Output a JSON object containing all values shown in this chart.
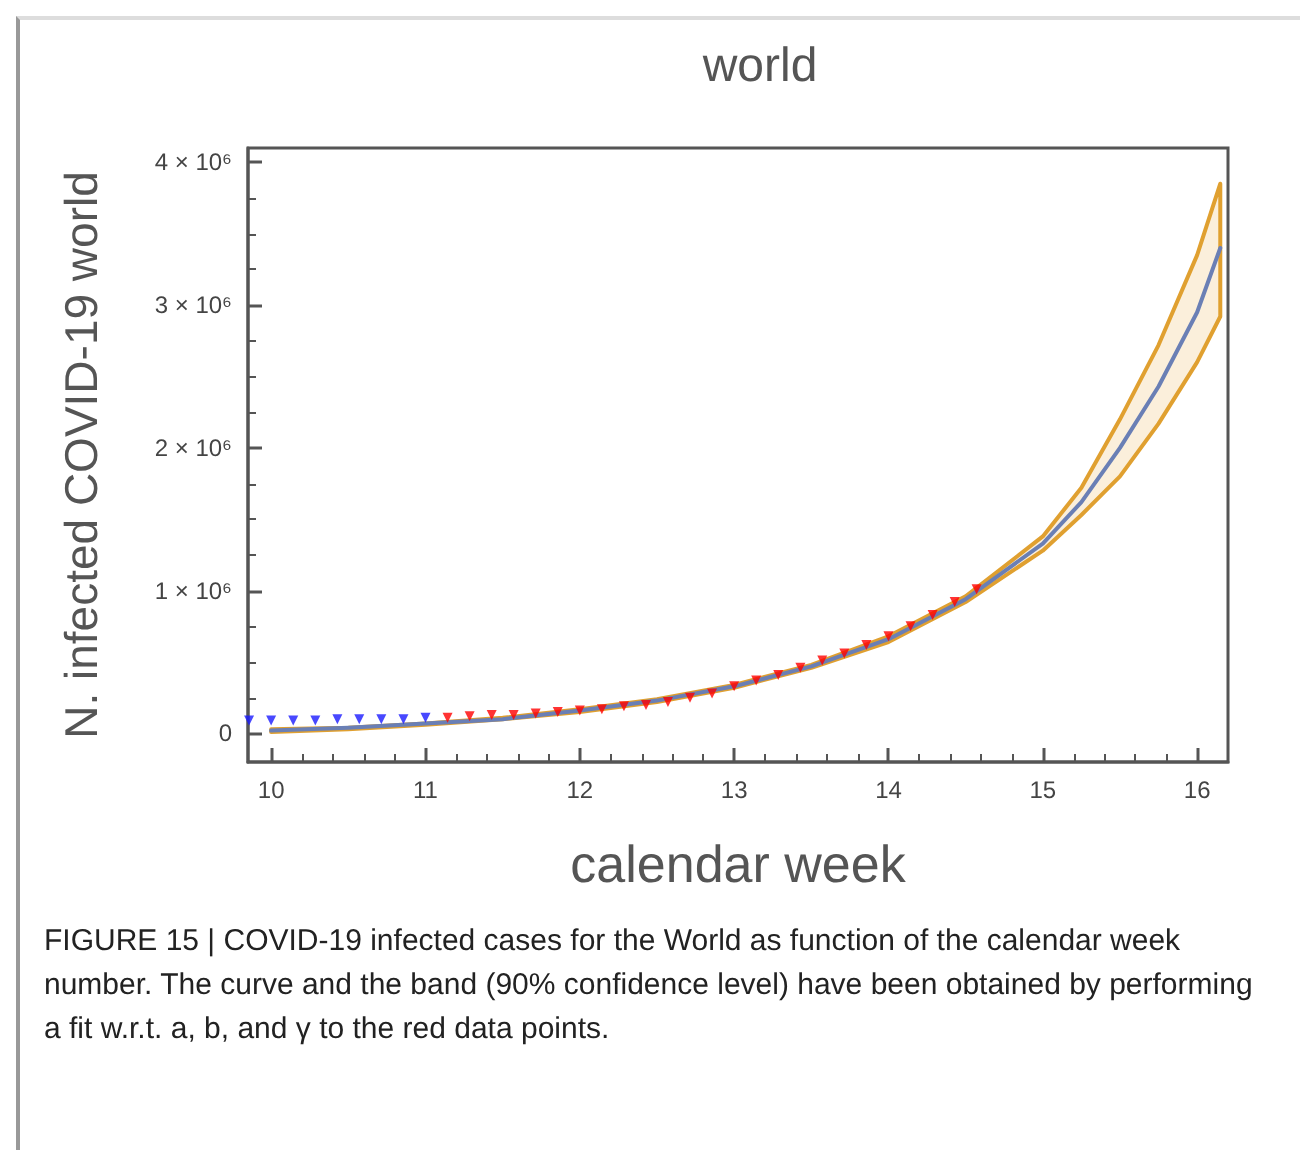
{
  "chart_data": {
    "type": "line",
    "title": "world",
    "xlabel": "calendar week",
    "ylabel": "N. infected COVID-19 world",
    "xlim": [
      9.85,
      16.2
    ],
    "xticks": [
      10,
      11,
      12,
      13,
      14,
      15,
      16
    ],
    "ylim": [
      -200000,
      4100000
    ],
    "yticks": [
      0,
      {
        "value": 1000000,
        "label": "1 × 10⁶"
      },
      {
        "value": 2000000,
        "label": "2 × 10⁶"
      },
      {
        "value": 3000000,
        "label": "3 × 10⁶"
      },
      {
        "value": 4000000,
        "label": "4 × 10⁶"
      }
    ],
    "grid": false,
    "series": [
      {
        "color": "#6a7fb5",
        "marker": "none",
        "line_style": "solid",
        "x": [
          10,
          10.5,
          11,
          11.5,
          12,
          12.5,
          13,
          13.5,
          14,
          14.5,
          15,
          15.25,
          15.5,
          15.75,
          16,
          16.15
        ],
        "values": [
          20000,
          40000,
          70000,
          100000,
          160000,
          230000,
          330000,
          470000,
          660000,
          940000,
          1330000,
          1620000,
          2000000,
          2430000,
          2950000,
          3400000
        ],
        "lower": [
          10000,
          30000,
          60000,
          100000,
          150000,
          220000,
          320000,
          460000,
          640000,
          920000,
          1280000,
          1530000,
          1800000,
          2170000,
          2600000,
          2920000
        ],
        "upper": [
          30000,
          40000,
          70000,
          110000,
          170000,
          240000,
          340000,
          480000,
          680000,
          960000,
          1380000,
          1720000,
          2200000,
          2720000,
          3350000,
          3850000
        ]
      },
      {
        "type": "scatter",
        "color": "#1a1aff",
        "marker": "triangle",
        "x": [
          9.857,
          10,
          10.143,
          10.286,
          10.429,
          10.571,
          10.714,
          10.857,
          11
        ],
        "values": [
          90000,
          90000,
          90000,
          90000,
          100000,
          100000,
          100000,
          100000,
          110000
        ]
      },
      {
        "type": "scatter",
        "color": "#ff0000",
        "marker": "triangle",
        "x": [
          11.143,
          11.286,
          11.429,
          11.571,
          11.714,
          11.857,
          12,
          12.143,
          12.286,
          12.429,
          12.571,
          12.714,
          12.857,
          13,
          13.143,
          13.286,
          13.429,
          13.571,
          13.714,
          13.857,
          14,
          14.143,
          14.286,
          14.429,
          14.571
        ],
        "values": [
          110000,
          120000,
          130000,
          130000,
          140000,
          150000,
          160000,
          170000,
          190000,
          200000,
          220000,
          250000,
          280000,
          330000,
          370000,
          410000,
          460000,
          510000,
          560000,
          620000,
          680000,
          750000,
          830000,
          920000,
          1010000
        ]
      }
    ],
    "annotations": [
      "FIGURE 15 | COVID-19 infected cases for the World as function of the calendar week number. The curve and the band (90% confidence level) have been obtained by performing a fit w.r.t. a, b, and γ to the red data points."
    ]
  }
}
